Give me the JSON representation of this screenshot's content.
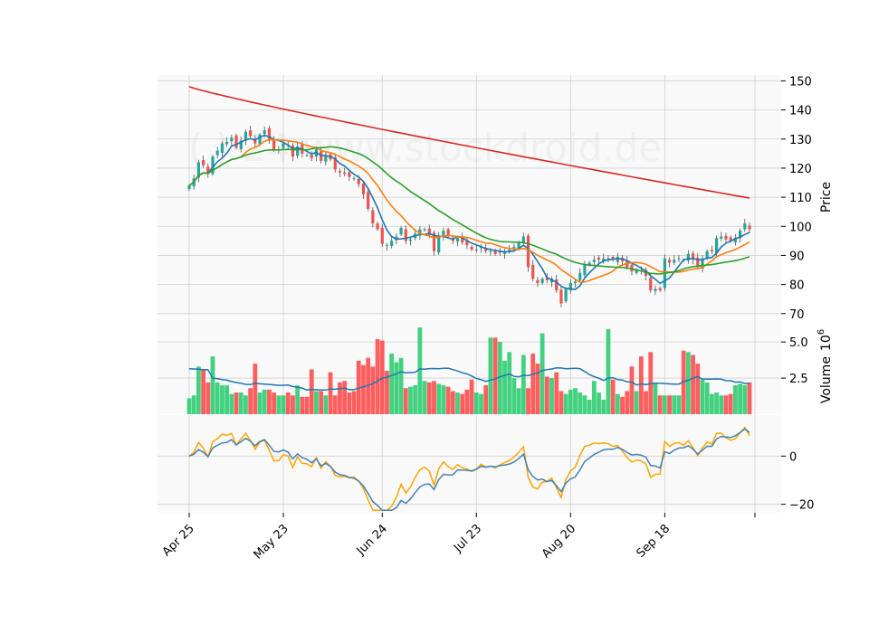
{
  "watermark": "( ) 24 www.stockdroid.de",
  "chart_data": {
    "type": "candlestick",
    "dates_x_tick_labels": [
      "Apr 25",
      "May 23",
      "Jun 24",
      "Jul 23",
      "Aug 20",
      "Sep 18"
    ],
    "x_tick_index": [
      0,
      20,
      41,
      61,
      81,
      101
    ],
    "n_sessions": 120,
    "price_panel": {
      "ylabel": "Price",
      "ylim": [
        69,
        152
      ],
      "yticks": [
        70,
        80,
        90,
        100,
        110,
        120,
        130,
        140,
        150
      ],
      "close": [
        114.0,
        116.5,
        122.0,
        121.0,
        118.0,
        124.0,
        126.0,
        128.5,
        129.0,
        130.5,
        127.0,
        129.5,
        132.5,
        131.0,
        128.5,
        131.5,
        133.0,
        130.0,
        126.5,
        126.5,
        128.5,
        128.0,
        124.0,
        127.5,
        125.0,
        124.5,
        123.5,
        126.5,
        122.5,
        124.5,
        123.0,
        119.5,
        118.5,
        118.0,
        117.0,
        116.5,
        114.5,
        111.0,
        106.0,
        101.0,
        99.0,
        94.0,
        93.5,
        95.0,
        96.5,
        99.5,
        95.0,
        95.5,
        97.5,
        99.0,
        99.0,
        97.0,
        91.5,
        96.5,
        98.5,
        96.5,
        95.0,
        96.0,
        94.5,
        93.5,
        92.0,
        92.0,
        93.0,
        91.5,
        91.5,
        90.5,
        91.0,
        91.5,
        92.0,
        93.0,
        94.5,
        96.5,
        86.0,
        82.0,
        80.5,
        82.0,
        81.5,
        82.0,
        78.0,
        73.5,
        78.5,
        80.5,
        81.0,
        84.0,
        87.0,
        87.5,
        88.5,
        88.5,
        89.0,
        89.0,
        88.5,
        89.5,
        88.0,
        86.0,
        84.5,
        85.0,
        84.5,
        83.0,
        78.0,
        78.5,
        78.0,
        89.0,
        87.5,
        88.5,
        89.0,
        88.5,
        90.5,
        88.5,
        86.0,
        89.0,
        91.5,
        91.5,
        96.0,
        96.5,
        95.5,
        95.0,
        96.0,
        98.5,
        101.0,
        99.0
      ],
      "moving_averages": [
        {
          "color": "#1f77b4",
          "period": "short",
          "approx_start": 114.0,
          "approx_end": 100.3
        },
        {
          "color": "#ff7f0e",
          "period": "medium",
          "approx_start": 121.0,
          "approx_end": 95.4
        },
        {
          "color": "#2ca02c",
          "period": "long",
          "approx_start": 122.3,
          "approx_end": 88.4
        },
        {
          "color": "#d62728",
          "period": "very-long",
          "approx_start": 148.0,
          "approx_end": 109.7
        }
      ]
    },
    "volume_panel": {
      "ylabel": "Volume",
      "ylabel_exponent": "10",
      "ylabel_exponent_power": "6",
      "yticks": [
        2.5,
        5.0
      ],
      "ytick_labels": [
        "2.5",
        "5.0"
      ],
      "ylim": [
        0,
        6.7
      ],
      "volume": [
        1.1,
        1.3,
        3.3,
        3.1,
        2.2,
        4.0,
        2.2,
        2.0,
        2.0,
        1.4,
        1.5,
        1.5,
        1.3,
        1.8,
        3.5,
        1.5,
        1.7,
        1.7,
        1.5,
        1.3,
        1.3,
        1.5,
        1.3,
        2.0,
        1.2,
        1.2,
        3.1,
        1.6,
        1.6,
        1.3,
        2.9,
        1.3,
        2.2,
        2.3,
        1.5,
        1.6,
        3.7,
        3.4,
        3.9,
        3.3,
        5.2,
        5.1,
        3.0,
        4.2,
        3.6,
        3.9,
        1.8,
        1.9,
        2.0,
        6.0,
        2.3,
        2.2,
        2.3,
        2.1,
        2.0,
        1.9,
        1.6,
        1.5,
        1.4,
        1.7,
        2.4,
        1.5,
        1.4,
        2.0,
        5.3,
        5.3,
        5.0,
        3.7,
        4.3,
        2.5,
        1.8,
        4.1,
        1.8,
        4.2,
        3.5,
        5.6,
        2.6,
        2.5,
        2.9,
        1.6,
        1.4,
        1.7,
        1.8,
        1.5,
        1.3,
        1.0,
        2.3,
        1.5,
        1.0,
        5.9,
        2.4,
        1.4,
        1.2,
        1.6,
        3.3,
        1.6,
        4.0,
        1.6,
        4.3,
        2.1,
        1.3,
        1.3,
        1.3,
        1.3,
        1.3,
        4.4,
        4.3,
        4.1,
        3.5,
        2.4,
        2.2,
        1.4,
        1.5,
        1.3,
        1.3,
        1.4,
        2.0,
        2.1,
        2.0,
        2.2
      ],
      "volume_ma_color": "#1f77b4",
      "volume_ma_approx": {
        "start": 3.15,
        "min": 2.1,
        "end": 2.1
      }
    },
    "oscillator_panel": {
      "yticks": [
        -20,
        0
      ],
      "ytick_labels": [
        "−20",
        "0"
      ],
      "ylim": [
        -23.5,
        17
      ],
      "series": [
        {
          "color": "#4682b4",
          "name": ""
        },
        {
          "color": "#ffa500",
          "name": ""
        }
      ]
    },
    "colors": {
      "up_candle": "#26a69a",
      "down_candle": "#ef5350",
      "up_volume": "#2ecc71",
      "down_volume": "#ff4d4d",
      "panel_background": "#f9f9f9",
      "grid": "#d0d0d0"
    },
    "grid": true,
    "legend": "none"
  }
}
